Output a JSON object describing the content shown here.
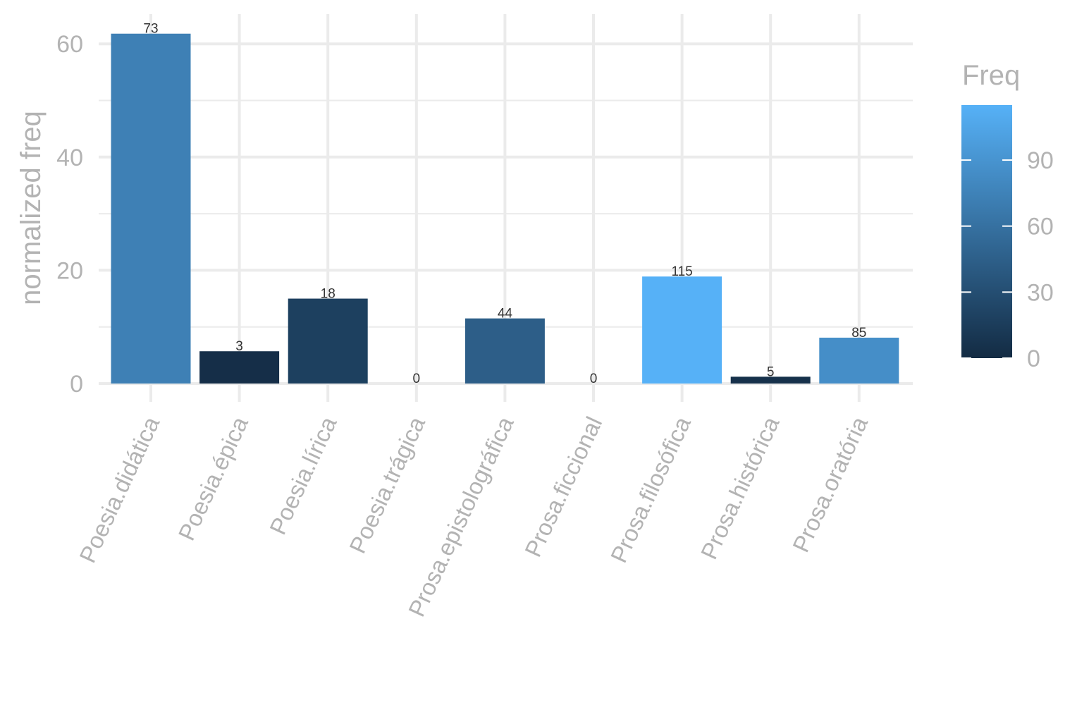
{
  "chart_data": {
    "type": "bar",
    "categories": [
      "Poesia.didática",
      "Poesia.épica",
      "Poesia.lírica",
      "Poesia.trágica",
      "Prosa.epistolográfica",
      "Prosa.ficcional",
      "Prosa.filosófica",
      "Prosa.histórica",
      "Prosa.oratória"
    ],
    "values": [
      61.8,
      5.7,
      15.0,
      0,
      11.5,
      0,
      18.9,
      1.2,
      8.1
    ],
    "freq": [
      73,
      3,
      18,
      0,
      44,
      0,
      115,
      5,
      85
    ],
    "data_labels": [
      "73",
      "3",
      "18",
      "0",
      "44",
      "0",
      "115",
      "5",
      "85"
    ],
    "title": "",
    "xlabel": "",
    "ylabel": "normalized freq",
    "ylim": [
      0,
      62
    ],
    "y_ticks": [
      0,
      20,
      40,
      60
    ],
    "y_tick_labels": [
      "0",
      "20",
      "40",
      "60"
    ],
    "grid": true,
    "legend": {
      "title": "Freq",
      "placement": "right",
      "range": [
        0,
        115
      ],
      "ticks": [
        0,
        30,
        60,
        90
      ],
      "tick_labels": [
        "0",
        "30",
        "60",
        "90"
      ],
      "color_low": "#132B43",
      "color_high": "#56B1F7"
    }
  }
}
